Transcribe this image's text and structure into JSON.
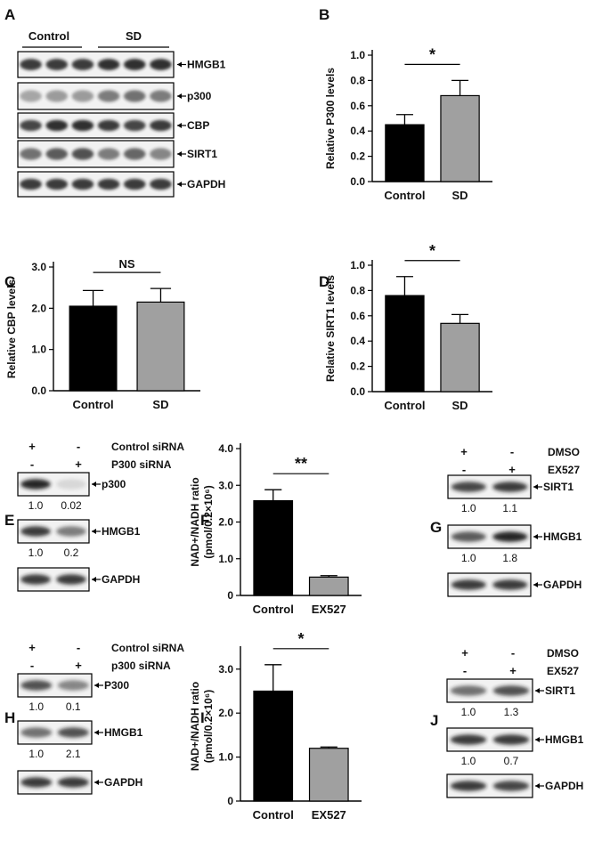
{
  "panel_letters": [
    "A",
    "B",
    "C",
    "D",
    "E",
    "F",
    "G",
    "H",
    "I",
    "J"
  ],
  "panel_a": {
    "groups": [
      "Control",
      "SD"
    ],
    "bands": [
      "HMGB1",
      "p300",
      "CBP",
      "SIRT1",
      "GAPDH"
    ]
  },
  "panel_e": {
    "row1_signs": [
      "+",
      "-"
    ],
    "row1_label": "Control siRNA",
    "row2_signs": [
      "-",
      "+"
    ],
    "row2_label": "P300  siRNA",
    "blots": [
      {
        "label": "p300",
        "values": [
          "1.0",
          "0.02"
        ]
      },
      {
        "label": "HMGB1",
        "values": [
          "1.0",
          "0.2"
        ]
      },
      {
        "label": "GAPDH",
        "values": []
      }
    ]
  },
  "panel_g": {
    "row1_signs": [
      "+",
      "-"
    ],
    "row1_label": "DMSO",
    "row2_signs": [
      "-",
      "+"
    ],
    "row2_label": "EX527",
    "blots": [
      {
        "label": "SIRT1",
        "values": [
          "1.0",
          "1.1"
        ]
      },
      {
        "label": "HMGB1",
        "values": [
          "1.0",
          "1.8"
        ]
      },
      {
        "label": "GAPDH",
        "values": []
      }
    ]
  },
  "panel_h": {
    "row1_signs": [
      "+",
      "-"
    ],
    "row1_label": "Control siRNA",
    "row2_signs": [
      "-",
      "+"
    ],
    "row2_label": "p300  siRNA",
    "blots": [
      {
        "label": "P300",
        "values": [
          "1.0",
          "0.1"
        ]
      },
      {
        "label": "HMGB1",
        "values": [
          "1.0",
          "2.1"
        ]
      },
      {
        "label": "GAPDH",
        "values": []
      }
    ]
  },
  "panel_j": {
    "row1_signs": [
      "+",
      "-"
    ],
    "row1_label": "DMSO",
    "row2_signs": [
      "-",
      "+"
    ],
    "row2_label": "EX527",
    "blots": [
      {
        "label": "SIRT1",
        "values": [
          "1.0",
          "1.3"
        ]
      },
      {
        "label": "HMGB1",
        "values": [
          "1.0",
          "0.7"
        ]
      },
      {
        "label": "GAPDH",
        "values": []
      }
    ]
  },
  "colors": {
    "control_bar": "#000000",
    "treated_bar": "#a0a0a0",
    "band": "#1a1a1a"
  },
  "chart_data": [
    {
      "panel": "B",
      "type": "bar",
      "categories": [
        "Control",
        "SD"
      ],
      "values": [
        0.45,
        0.68
      ],
      "errors": [
        0.08,
        0.12
      ],
      "ylabel": "Relative P300 levels",
      "ylim": [
        0,
        1.0
      ],
      "yticks": [
        "0.0",
        "0.2",
        "0.4",
        "0.6",
        "0.8",
        "1.0"
      ],
      "significance": "*"
    },
    {
      "panel": "C",
      "type": "bar",
      "categories": [
        "Control",
        "SD"
      ],
      "values": [
        2.05,
        2.15
      ],
      "errors": [
        0.38,
        0.33
      ],
      "ylabel": "Relative CBP levels",
      "ylim": [
        0,
        3.0
      ],
      "yticks": [
        "0.0",
        "1.0",
        "2.0",
        "3.0"
      ],
      "significance": "NS"
    },
    {
      "panel": "D",
      "type": "bar",
      "categories": [
        "Control",
        "SD"
      ],
      "values": [
        0.76,
        0.54
      ],
      "errors": [
        0.15,
        0.07
      ],
      "ylabel": "Relative SIRT1 levels",
      "ylim": [
        0,
        1.0
      ],
      "yticks": [
        "0.0",
        "0.2",
        "0.4",
        "0.6",
        "0.8",
        "1.0"
      ],
      "significance": "*"
    },
    {
      "panel": "F",
      "type": "bar",
      "categories": [
        "Control",
        "EX527"
      ],
      "values": [
        2.58,
        0.5
      ],
      "errors": [
        0.3,
        0.04
      ],
      "ylabel": "NAD+/NADH ratio",
      "ylabel2": "(pmol/0.2×10⁶)",
      "ylim": [
        0,
        4.0
      ],
      "yticks": [
        "0",
        "1.0",
        "2.0",
        "3.0",
        "4.0"
      ],
      "significance": "**"
    },
    {
      "panel": "I",
      "type": "bar",
      "categories": [
        "Control",
        "EX527"
      ],
      "values": [
        2.5,
        1.2
      ],
      "errors": [
        0.6,
        0.03
      ],
      "ylabel": "NAD+/NADH ratio",
      "ylabel2": "(pmol/0.2×10⁶)",
      "ylim": [
        0,
        3.4
      ],
      "yticks": [
        "0",
        "1.0",
        "2.0",
        "3.0"
      ],
      "significance": "*"
    }
  ]
}
